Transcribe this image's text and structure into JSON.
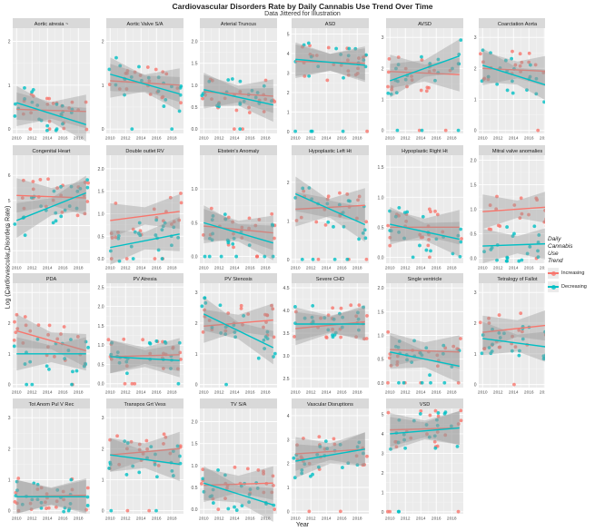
{
  "title": "Cardiovascular Disorders Rate by Daily Cannabis Use Trend Over Time",
  "subtitle": "Data Jittered for Illustration",
  "chart_data": {
    "type": "scatter",
    "xlabel": "Year",
    "ylabel": "Log (Cardiovascular Disorders Rate)",
    "xlim": [
      2009.5,
      2019.5
    ],
    "xticks": [
      2010,
      2012,
      2014,
      2016,
      2018
    ],
    "grid": true,
    "legend_position": "right",
    "legend": {
      "title": "Daily\nCannabis\nUse\nTrend",
      "entries": [
        {
          "label": "Increasing",
          "color": "#F8766D"
        },
        {
          "label": "Decreasing",
          "color": "#00BFC4"
        }
      ]
    },
    "facets": [
      {
        "name": "Aortic atresia ~",
        "ylim": [
          -0.1,
          2.3
        ],
        "yticks": [
          0,
          1,
          2
        ],
        "lines": {
          "Increasing": [
            0.45,
            0.4
          ],
          "Decreasing": [
            0.6,
            0.1
          ]
        }
      },
      {
        "name": "Aortic Valve S/A",
        "ylim": [
          -0.1,
          2.3
        ],
        "yticks": [
          0,
          1,
          2
        ],
        "lines": {
          "Increasing": [
            1.1,
            1.0
          ],
          "Decreasing": [
            1.25,
            0.8
          ]
        }
      },
      {
        "name": "Arterial Truncus",
        "ylim": [
          -0.1,
          2.3
        ],
        "yticks": [
          0,
          0.5,
          1.0,
          1.5,
          2.0
        ],
        "lines": {
          "Increasing": [
            0.85,
            0.75
          ],
          "Decreasing": [
            0.9,
            0.55
          ]
        }
      },
      {
        "name": "ASD",
        "ylim": [
          -0.1,
          5.3
        ],
        "yticks": [
          0,
          1,
          2,
          3,
          4,
          5
        ],
        "lines": {
          "Increasing": [
            3.6,
            3.5
          ],
          "Decreasing": [
            3.7,
            3.4
          ]
        }
      },
      {
        "name": "AVSD",
        "ylim": [
          -0.1,
          3.3
        ],
        "yticks": [
          0,
          1,
          2,
          3
        ],
        "lines": {
          "Increasing": [
            1.9,
            1.8
          ],
          "Decreasing": [
            1.6,
            2.4
          ]
        }
      },
      {
        "name": "Coarctation Aorta",
        "ylim": [
          -0.1,
          3.3
        ],
        "yticks": [
          0,
          1,
          2,
          3
        ],
        "lines": {
          "Increasing": [
            2.0,
            1.9
          ],
          "Decreasing": [
            2.1,
            1.4
          ]
        }
      },
      {
        "name": "Congenital Heart",
        "ylim": [
          2.5,
          6.8
        ],
        "yticks": [
          3,
          4,
          5,
          6
        ],
        "lines": {
          "Increasing": [
            5.2,
            5.1
          ],
          "Decreasing": [
            4.2,
            5.3
          ]
        }
      },
      {
        "name": "Double outlet RV",
        "ylim": [
          -0.1,
          2.3
        ],
        "yticks": [
          0,
          0.5,
          1.0,
          1.5,
          2.0
        ],
        "lines": {
          "Increasing": [
            0.85,
            1.05
          ],
          "Decreasing": [
            0.25,
            0.55
          ]
        }
      },
      {
        "name": "Ebstein's Anomaly",
        "ylim": [
          -0.1,
          1.5
        ],
        "yticks": [
          0,
          0.5,
          1.0
        ],
        "lines": {
          "Increasing": [
            0.45,
            0.35
          ],
          "Decreasing": [
            0.5,
            0.2
          ]
        }
      },
      {
        "name": "Hypoplastic Left Ht",
        "ylim": [
          -0.1,
          2.7
        ],
        "yticks": [
          0,
          1,
          2
        ],
        "lines": {
          "Increasing": [
            1.3,
            1.4
          ],
          "Decreasing": [
            1.7,
            0.9
          ]
        }
      },
      {
        "name": "Hypoplastic Right Ht",
        "ylim": [
          -0.1,
          1.7
        ],
        "yticks": [
          0,
          0.5,
          1.0,
          1.5
        ],
        "lines": {
          "Increasing": [
            0.5,
            0.5
          ],
          "Decreasing": [
            0.55,
            0.3
          ]
        }
      },
      {
        "name": "Mitral valve anomalies",
        "ylim": [
          -0.1,
          2.1
        ],
        "yticks": [
          0,
          0.5,
          1.0,
          1.5,
          2.0
        ],
        "lines": {
          "Increasing": [
            0.95,
            1.05
          ],
          "Decreasing": [
            0.25,
            0.3
          ]
        }
      },
      {
        "name": "PDA",
        "ylim": [
          -0.1,
          3.3
        ],
        "yticks": [
          0,
          1,
          2,
          3
        ],
        "lines": {
          "Increasing": [
            1.75,
            1.1
          ],
          "Decreasing": [
            1.0,
            1.0
          ]
        }
      },
      {
        "name": "PV Atresia",
        "ylim": [
          -0.1,
          2.6
        ],
        "yticks": [
          0,
          0.5,
          1.0,
          1.5,
          2.0,
          2.5
        ],
        "lines": {
          "Increasing": [
            0.7,
            0.75
          ],
          "Decreasing": [
            0.7,
            0.6
          ]
        }
      },
      {
        "name": "PV Stenosis",
        "ylim": [
          -0.1,
          3.3
        ],
        "yticks": [
          0,
          1,
          2,
          3
        ],
        "lines": {
          "Increasing": [
            1.9,
            2.1
          ],
          "Decreasing": [
            2.3,
            1.2
          ]
        }
      },
      {
        "name": "Severe CHD",
        "ylim": [
          2.3,
          4.6
        ],
        "yticks": [
          2.5,
          3.0,
          3.5,
          4.0,
          4.5
        ],
        "lines": {
          "Increasing": [
            3.6,
            3.75
          ],
          "Decreasing": [
            3.7,
            3.7
          ]
        }
      },
      {
        "name": "Single ventricle",
        "ylim": [
          -0.1,
          2.1
        ],
        "yticks": [
          0,
          0.5,
          1.0,
          1.5,
          2.0
        ],
        "lines": {
          "Increasing": [
            0.7,
            0.65
          ],
          "Decreasing": [
            0.65,
            0.35
          ]
        }
      },
      {
        "name": "Tetralogy of Fallot",
        "ylim": [
          -0.1,
          3.3
        ],
        "yticks": [
          0,
          1,
          2,
          3
        ],
        "lines": {
          "Increasing": [
            1.7,
            1.95
          ],
          "Decreasing": [
            1.5,
            1.2
          ]
        }
      },
      {
        "name": "Tot Anom Pul V Rec",
        "ylim": [
          -0.1,
          3.3
        ],
        "yticks": [
          0,
          1,
          2,
          3
        ],
        "lines": {
          "Increasing": [
            0.45,
            0.5
          ],
          "Decreasing": [
            0.45,
            0.45
          ]
        }
      },
      {
        "name": "Transpos Grt Vess",
        "ylim": [
          -0.1,
          3.3
        ],
        "yticks": [
          0,
          1,
          2,
          3
        ],
        "lines": {
          "Increasing": [
            1.8,
            2.0
          ],
          "Decreasing": [
            1.8,
            1.5
          ]
        }
      },
      {
        "name": "TV S/A",
        "ylim": [
          -0.1,
          2.3
        ],
        "yticks": [
          0,
          0.5,
          1.0,
          1.5,
          2.0
        ],
        "lines": {
          "Increasing": [
            0.55,
            0.6
          ],
          "Decreasing": [
            0.6,
            0.1
          ]
        }
      },
      {
        "name": "Vascular Disruptions",
        "ylim": [
          -0.1,
          4.3
        ],
        "yticks": [
          0,
          1,
          2,
          3,
          4
        ],
        "lines": {
          "Increasing": [
            2.4,
            2.6
          ],
          "Decreasing": [
            2.1,
            2.6
          ]
        }
      },
      {
        "name": "VSD",
        "ylim": [
          -0.1,
          5.3
        ],
        "yticks": [
          0,
          1,
          2,
          3,
          4,
          5
        ],
        "lines": {
          "Increasing": [
            4.2,
            4.3
          ],
          "Decreasing": [
            4.0,
            4.3
          ]
        }
      }
    ]
  }
}
